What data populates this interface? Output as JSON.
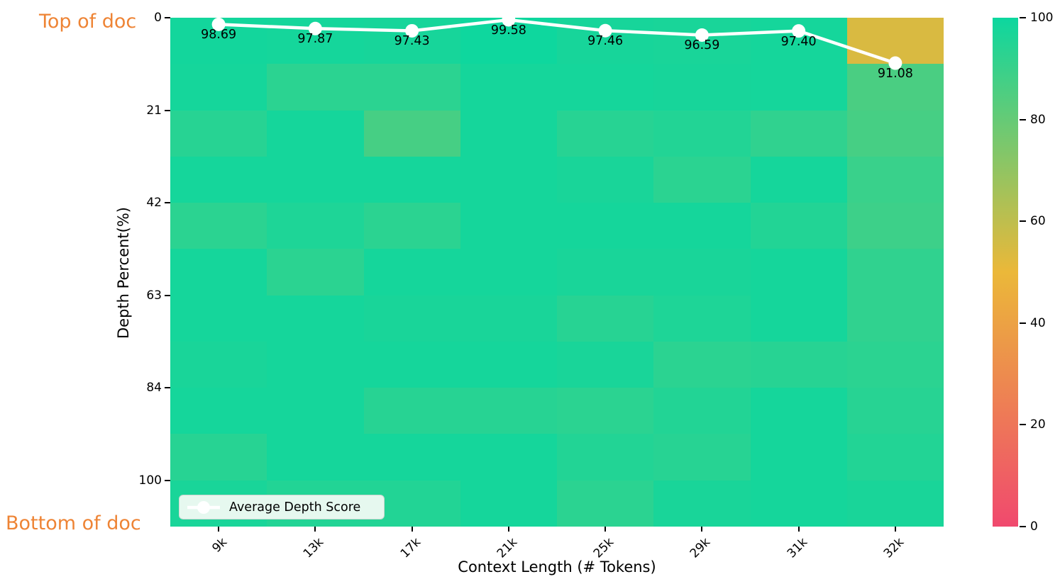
{
  "annotations": {
    "top_of_doc": "Top of doc",
    "bottom_of_doc": "Bottom of doc",
    "color": "#ee8435"
  },
  "chart_data": {
    "type": "heatmap",
    "xlabel": "Context Length (# Tokens)",
    "ylabel": "Depth Percent(%)",
    "x_tick_labels": [
      "9k",
      "13k",
      "17k",
      "21k",
      "25k",
      "29k",
      "31k",
      "32k"
    ],
    "y_tick_labels": [
      "0",
      "21",
      "42",
      "63",
      "84",
      "100"
    ],
    "grid": "off",
    "n_rows": 11,
    "n_cols": 8,
    "heatmap_scores": [
      [
        98.5,
        98,
        97.5,
        99.5,
        97.5,
        97,
        98,
        54
      ],
      [
        98,
        93,
        93,
        98,
        98,
        97.5,
        98,
        86
      ],
      [
        94,
        98,
        87,
        98,
        94,
        95,
        92,
        87
      ],
      [
        98,
        98,
        98,
        98,
        97,
        93,
        98,
        90
      ],
      [
        93,
        96,
        93,
        98,
        98,
        98,
        95,
        89
      ],
      [
        98,
        93,
        98,
        98,
        97,
        97,
        98,
        92
      ],
      [
        98,
        98,
        97,
        97,
        94,
        96,
        98,
        92
      ],
      [
        97,
        98,
        98,
        98,
        97,
        93,
        94,
        93
      ],
      [
        98,
        98,
        94,
        94,
        93,
        95,
        98,
        94
      ],
      [
        94,
        98,
        98,
        98,
        95,
        94,
        98,
        95
      ],
      [
        97,
        95,
        95,
        98,
        93,
        97,
        98,
        97
      ]
    ],
    "line_series": {
      "name": "Average Depth Score",
      "x_categories": [
        "9k",
        "13k",
        "17k",
        "21k",
        "25k",
        "29k",
        "31k",
        "32k"
      ],
      "values": [
        98.69,
        97.87,
        97.43,
        99.58,
        97.46,
        96.59,
        97.4,
        91.08
      ],
      "point_labels": [
        "98.69",
        "97.87",
        "97.43",
        "99.58",
        "97.46",
        "96.59",
        "97.40",
        "91.08"
      ],
      "line_color": "#ffffff",
      "value_range": [
        0,
        100
      ]
    },
    "legend": {
      "label": "Average Depth Score",
      "position": "lower left"
    },
    "colorbar": {
      "tick_labels": [
        "100",
        "80",
        "60",
        "40",
        "20",
        "0"
      ],
      "range": [
        0,
        100
      ],
      "colormap_stops": [
        {
          "value": 0,
          "color": "#F0496E"
        },
        {
          "value": 50,
          "color": "#EBB839"
        },
        {
          "value": 100,
          "color": "#0CD79F"
        }
      ]
    }
  }
}
